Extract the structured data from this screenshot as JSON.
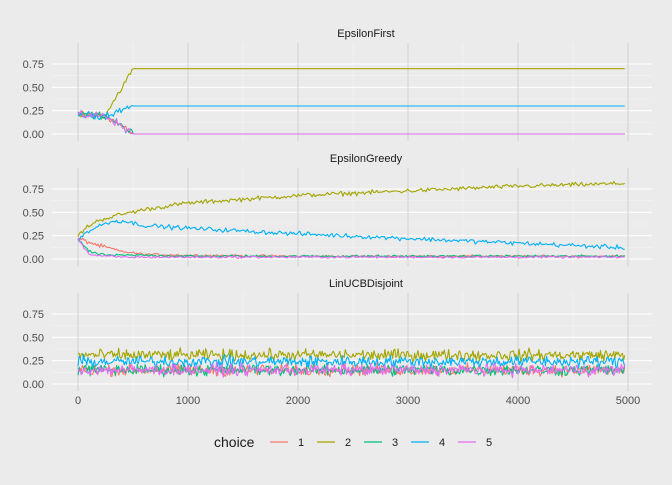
{
  "chart_data": {
    "type": "line",
    "legend": {
      "title": "choice",
      "position": "bottom",
      "entries": [
        "1",
        "2",
        "3",
        "4",
        "5"
      ]
    },
    "colors": {
      "1": "#F8766D",
      "2": "#A3A500",
      "3": "#00BF7D",
      "4": "#00B0F6",
      "5": "#E76BF3"
    },
    "grid": true,
    "panels": [
      {
        "title": "EpsilonFirst",
        "xlim": [
          0,
          5000
        ],
        "ylim": [
          0,
          0.75
        ],
        "x_ticks": [
          "0",
          "1000",
          "2000",
          "3000",
          "4000",
          "5000"
        ],
        "y_ticks": [
          "0.00",
          "0.25",
          "0.50",
          "0.75"
        ],
        "series": [
          {
            "name": "1",
            "x": [
              0,
              250,
              500,
              5000
            ],
            "y": [
              0.2,
              0.2,
              0.0,
              0.0
            ]
          },
          {
            "name": "2",
            "x": [
              0,
              250,
              500,
              5000
            ],
            "y": [
              0.2,
              0.2,
              0.7,
              0.7
            ]
          },
          {
            "name": "3",
            "x": [
              0,
              250,
              500,
              5000
            ],
            "y": [
              0.2,
              0.2,
              0.0,
              0.0
            ]
          },
          {
            "name": "4",
            "x": [
              0,
              250,
              500,
              5000
            ],
            "y": [
              0.2,
              0.2,
              0.3,
              0.3
            ]
          },
          {
            "name": "5",
            "x": [
              0,
              250,
              500,
              5000
            ],
            "y": [
              0.2,
              0.2,
              0.0,
              0.0
            ]
          }
        ]
      },
      {
        "title": "EpsilonGreedy",
        "xlim": [
          0,
          5000
        ],
        "ylim": [
          0,
          0.75
        ],
        "x_ticks": [
          "0",
          "1000",
          "2000",
          "3000",
          "4000",
          "5000"
        ],
        "y_ticks": [
          "0.00",
          "0.25",
          "0.50",
          "0.75"
        ],
        "series": [
          {
            "name": "1",
            "x": [
              0,
              100,
              200,
              300,
              400,
              600,
              1000,
              2000,
              3000,
              4000,
              5000
            ],
            "y": [
              0.22,
              0.18,
              0.14,
              0.11,
              0.08,
              0.05,
              0.04,
              0.03,
              0.03,
              0.03,
              0.03
            ]
          },
          {
            "name": "2",
            "x": [
              0,
              100,
              200,
              300,
              400,
              600,
              1000,
              2000,
              3000,
              4000,
              5000
            ],
            "y": [
              0.25,
              0.36,
              0.42,
              0.45,
              0.48,
              0.53,
              0.6,
              0.68,
              0.73,
              0.78,
              0.81
            ]
          },
          {
            "name": "3",
            "x": [
              0,
              100,
              200,
              300,
              400,
              600,
              1000,
              2000,
              3000,
              4000,
              5000
            ],
            "y": [
              0.22,
              0.08,
              0.05,
              0.04,
              0.04,
              0.04,
              0.03,
              0.03,
              0.03,
              0.03,
              0.03
            ]
          },
          {
            "name": "4",
            "x": [
              0,
              100,
              200,
              300,
              400,
              600,
              1000,
              2000,
              3000,
              4000,
              5000
            ],
            "y": [
              0.22,
              0.3,
              0.36,
              0.4,
              0.41,
              0.36,
              0.33,
              0.27,
              0.22,
              0.17,
              0.12
            ]
          },
          {
            "name": "5",
            "x": [
              0,
              100,
              200,
              300,
              400,
              600,
              1000,
              2000,
              3000,
              4000,
              5000
            ],
            "y": [
              0.22,
              0.05,
              0.03,
              0.03,
              0.02,
              0.02,
              0.02,
              0.02,
              0.02,
              0.02,
              0.02
            ]
          }
        ]
      },
      {
        "title": "LinUCBDisjoint",
        "xlim": [
          0,
          5000
        ],
        "ylim": [
          0,
          0.75
        ],
        "x_ticks": [
          "0",
          "1000",
          "2000",
          "3000",
          "4000",
          "5000"
        ],
        "y_ticks": [
          "0.00",
          "0.25",
          "0.50",
          "0.75"
        ],
        "series": [
          {
            "name": "1",
            "x": [
              0,
              5000
            ],
            "y": [
              0.15,
              0.15
            ]
          },
          {
            "name": "2",
            "x": [
              0,
              5000
            ],
            "y": [
              0.31,
              0.31
            ]
          },
          {
            "name": "3",
            "x": [
              0,
              5000
            ],
            "y": [
              0.15,
              0.15
            ]
          },
          {
            "name": "4",
            "x": [
              0,
              5000
            ],
            "y": [
              0.24,
              0.24
            ]
          },
          {
            "name": "5",
            "x": [
              0,
              5000
            ],
            "y": [
              0.15,
              0.15
            ]
          }
        ]
      }
    ]
  }
}
